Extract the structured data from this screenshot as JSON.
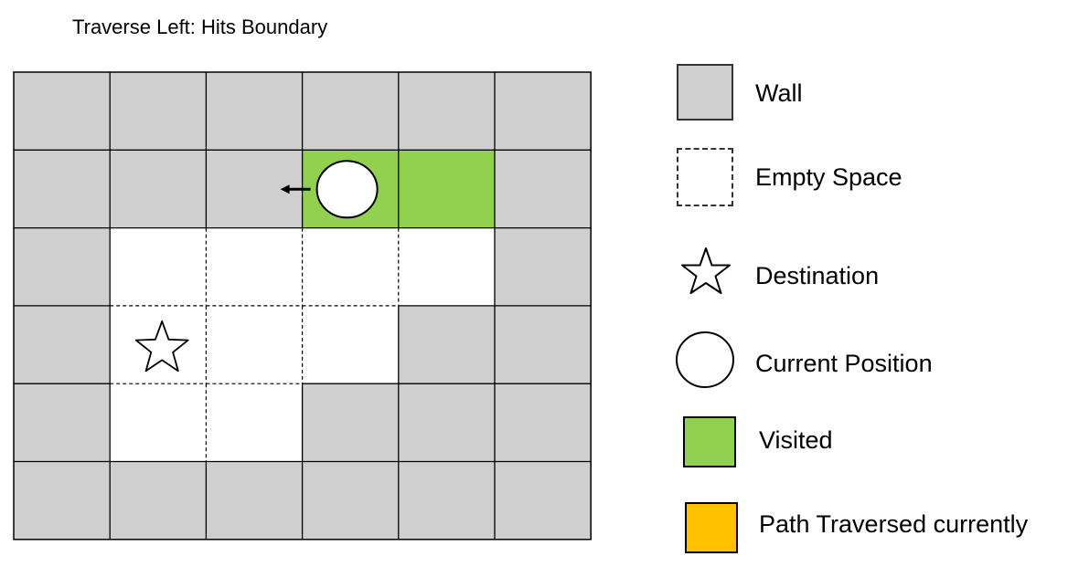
{
  "title": "Traverse Left: Hits Boundary",
  "colors": {
    "wall": "#d0cfd0",
    "empty": "#ffffff",
    "visited": "#92d050",
    "path_traversed": "#ffc000",
    "line": "#000000"
  },
  "maze": {
    "rows": 6,
    "cols": 6,
    "cells": [
      [
        "wall",
        "wall",
        "wall",
        "wall",
        "wall",
        "wall"
      ],
      [
        "wall",
        "wall",
        "wall",
        "visited",
        "visited",
        "wall"
      ],
      [
        "wall",
        "empty",
        "empty",
        "empty",
        "empty",
        "wall"
      ],
      [
        "wall",
        "empty",
        "empty",
        "empty",
        "wall",
        "wall"
      ],
      [
        "wall",
        "empty",
        "empty",
        "wall",
        "wall",
        "wall"
      ],
      [
        "wall",
        "wall",
        "wall",
        "wall",
        "wall",
        "wall"
      ]
    ],
    "current_position": {
      "row": 1,
      "col": 3
    },
    "destination": {
      "row": 3,
      "col": 1
    },
    "move_direction": "left"
  },
  "legend": [
    {
      "key": "wall",
      "label": "Wall"
    },
    {
      "key": "empty",
      "label": "Empty Space"
    },
    {
      "key": "destination",
      "label": "Destination"
    },
    {
      "key": "current",
      "label": "Current Position"
    },
    {
      "key": "visited",
      "label": "Visited"
    },
    {
      "key": "path",
      "label": "Path Traversed currently"
    }
  ]
}
